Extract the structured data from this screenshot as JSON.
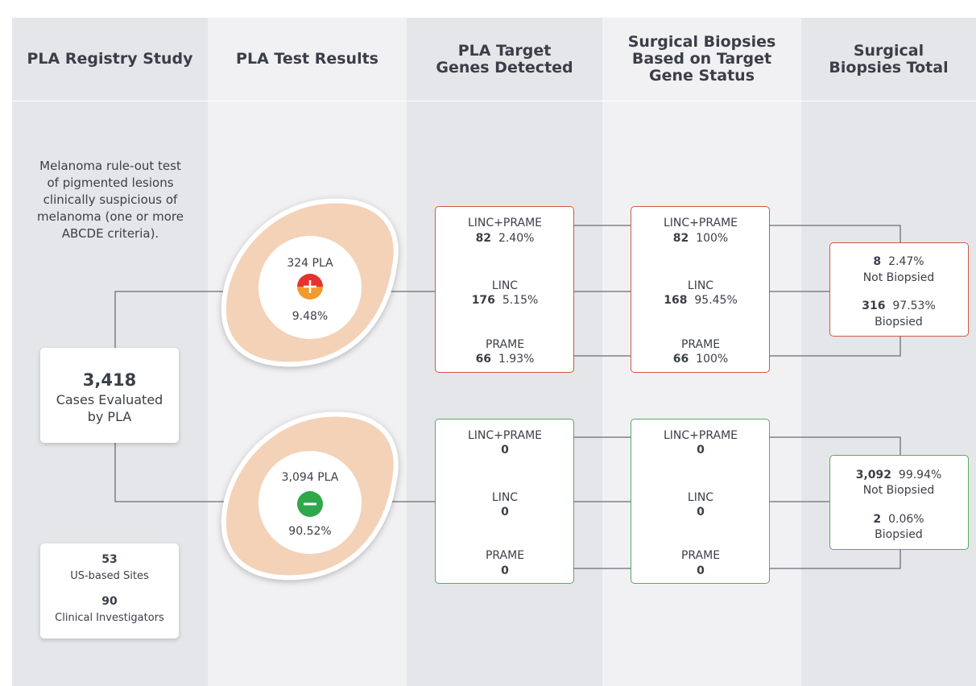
{
  "columns": [
    {
      "title": [
        "PLA Registry Study"
      ]
    },
    {
      "title": [
        "PLA Test Results"
      ]
    },
    {
      "title": [
        "PLA Target",
        "Genes Detected"
      ]
    },
    {
      "title": [
        "Surgical Biopsies",
        "Based on Target",
        "Gene Status"
      ]
    },
    {
      "title": [
        "Surgical",
        "Biopsies Total"
      ]
    }
  ],
  "description": [
    "Melanoma rule-out test",
    "of pigmented lesions",
    "clinically suspicious of",
    "melanoma (one or more",
    "ABCDE criteria)."
  ],
  "cases": {
    "count": "3,418",
    "lines": [
      "Cases Evaluated",
      "by PLA"
    ]
  },
  "sites": [
    {
      "count": "53",
      "label": "US-based Sites"
    },
    {
      "count": "90",
      "label": "Clinical Investigators"
    }
  ],
  "results": [
    {
      "count": "324 PLA",
      "percent": "9.48%"
    },
    {
      "count": "3,094 PLA",
      "percent": "90.52%"
    }
  ],
  "genes": [
    [
      {
        "label": "LINC+PRAME",
        "count": "82",
        "percent": "2.40%"
      },
      {
        "label": "LINC",
        "count": "176",
        "percent": "5.15%"
      },
      {
        "label": "PRAME",
        "count": "66",
        "percent": "1.93%"
      }
    ],
    [
      {
        "label": "LINC+PRAME",
        "count": "0"
      },
      {
        "label": "LINC",
        "count": "0"
      },
      {
        "label": "PRAME",
        "count": "0"
      }
    ]
  ],
  "biopsies": [
    [
      {
        "label": "LINC+PRAME",
        "count": "82",
        "percent": "100%"
      },
      {
        "label": "LINC",
        "count": "168",
        "percent": "95.45%"
      },
      {
        "label": "PRAME",
        "count": "66",
        "percent": "100%"
      }
    ],
    [
      {
        "label": "LINC+PRAME",
        "count": "0"
      },
      {
        "label": "LINC",
        "count": "0"
      },
      {
        "label": "PRAME",
        "count": "0"
      }
    ]
  ],
  "totals": [
    [
      {
        "count": "8",
        "percent": "2.47%",
        "label": "Not Biopsied"
      },
      {
        "count": "316",
        "percent": "97.53%",
        "label": "Biopsied"
      }
    ],
    [
      {
        "count": "3,092",
        "percent": "99.94%",
        "label": "Not Biopsied"
      },
      {
        "count": "2",
        "percent": "0.06%",
        "label": "Biopsied"
      }
    ]
  ]
}
